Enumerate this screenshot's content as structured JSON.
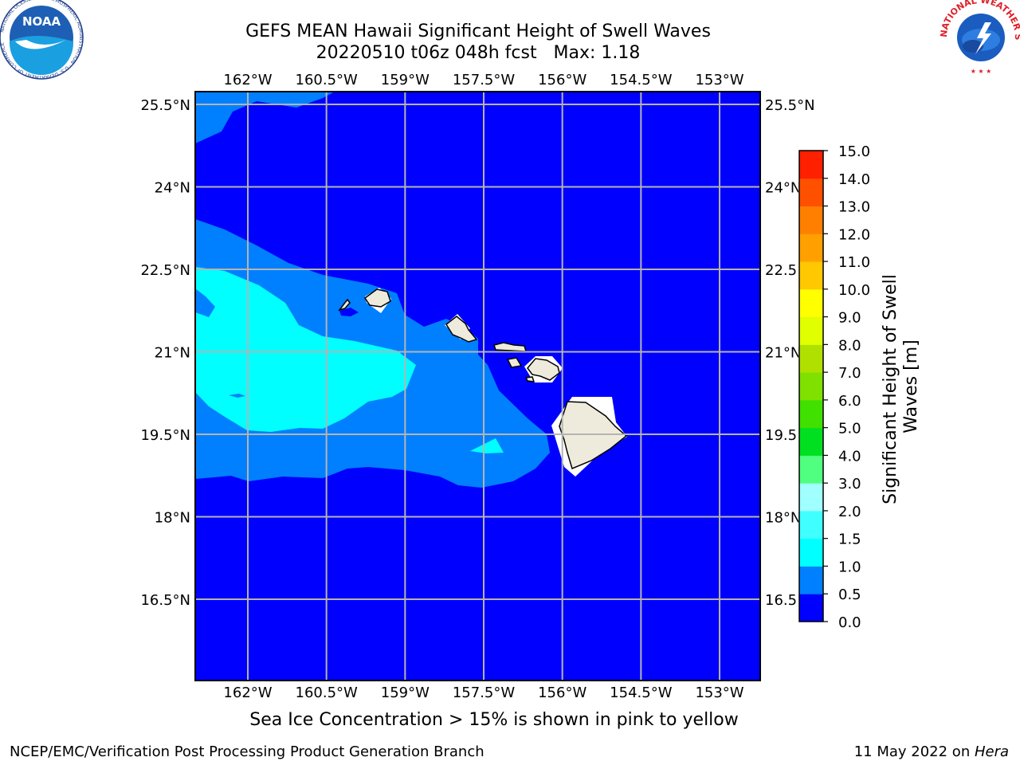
{
  "title": {
    "line1": "GEFS MEAN Hawaii Significant Height of Swell Waves",
    "line2": "20220510 t06z 048h fcst   Max: 1.18"
  },
  "map": {
    "lon_range": [
      -163.0,
      -151.5
    ],
    "lat_range": [
      15.0,
      25.5
    ],
    "lon_ticks": [
      "162°W",
      "160.5°W",
      "159°W",
      "157.5°W",
      "156°W",
      "154.5°W",
      "153°W"
    ],
    "lat_ticks": [
      "25.5°N",
      "24°N",
      "22.5°N",
      "21°N",
      "19.5°N",
      "18°N",
      "16.5°N"
    ],
    "grid": true,
    "land_color": "#efebdc"
  },
  "colorbar": {
    "label": "Significant Height of Swell Waves [m]",
    "label_line1": "Significant Height of Swell",
    "label_line2": "Waves [m]",
    "ticks": [
      "0.0",
      "0.5",
      "1.0",
      "1.5",
      "2.0",
      "3.0",
      "4.0",
      "5.0",
      "6.0",
      "7.0",
      "8.0",
      "9.0",
      "10.0",
      "11.0",
      "12.0",
      "13.0",
      "14.0",
      "15.0"
    ],
    "colors": [
      "#0000ff",
      "#0080ff",
      "#00ffff",
      "#40ffff",
      "#a0ffff",
      "#50ff80",
      "#00e020",
      "#40e000",
      "#80e000",
      "#b0e000",
      "#e0ff00",
      "#ffff00",
      "#ffc800",
      "#ffa000",
      "#ff8000",
      "#ff5000",
      "#ff2000",
      "#ff0000"
    ]
  },
  "logos": {
    "left": "NOAA",
    "left_ring_text": "NATIONAL OCEANIC AND ATMOSPHERIC ADMINISTRATION · U.S. DEPARTMENT OF COMMERCE",
    "right_ring_text": "NATIONAL WEATHER SERVICE"
  },
  "footer": {
    "note": "Sea Ice Concentration > 15% is shown in pink to yellow",
    "left": "NCEP/EMC/Verification Post Processing Product Generation Branch",
    "right_text": "11 May 2022 on ",
    "right_italic": "Hera"
  }
}
